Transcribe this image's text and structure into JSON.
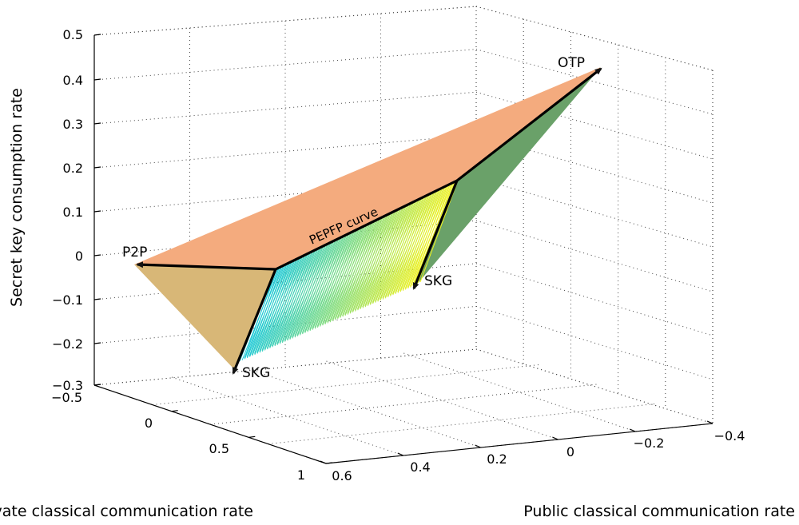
{
  "chart_data": {
    "type": "3d-surface",
    "title": "",
    "axes": {
      "z": {
        "label": "Secret key consumption rate",
        "range": [
          -0.3,
          0.5
        ],
        "ticks": [
          "0.5",
          "0.4",
          "0.3",
          "0.2",
          "0.1",
          "0",
          "−0.1",
          "−0.2",
          "−0.3"
        ]
      },
      "x": {
        "label": "Private classical communication rate",
        "range": [
          -0.5,
          1
        ],
        "ticks": [
          "−0.5",
          "0",
          "0.5",
          "1"
        ]
      },
      "y": {
        "label": "Public classical communication rate",
        "range": [
          -0.4,
          0.6
        ],
        "ticks": [
          "0.6",
          "0.4",
          "0.2",
          "0",
          "−0.2",
          "−0.4"
        ]
      }
    },
    "grid": true,
    "annotations": [
      {
        "text": "OTP"
      },
      {
        "text": "P2P"
      },
      {
        "text": "PEPFP curve"
      },
      {
        "text": "SKG"
      },
      {
        "text": "SKG"
      }
    ],
    "surface_colors": {
      "top_plane": "#f4ab7e",
      "left_plane": "#d8b777",
      "right_plane": "#6aa169",
      "gradient_start": "#18c8d8",
      "gradient_end": "#f2f21a"
    }
  }
}
